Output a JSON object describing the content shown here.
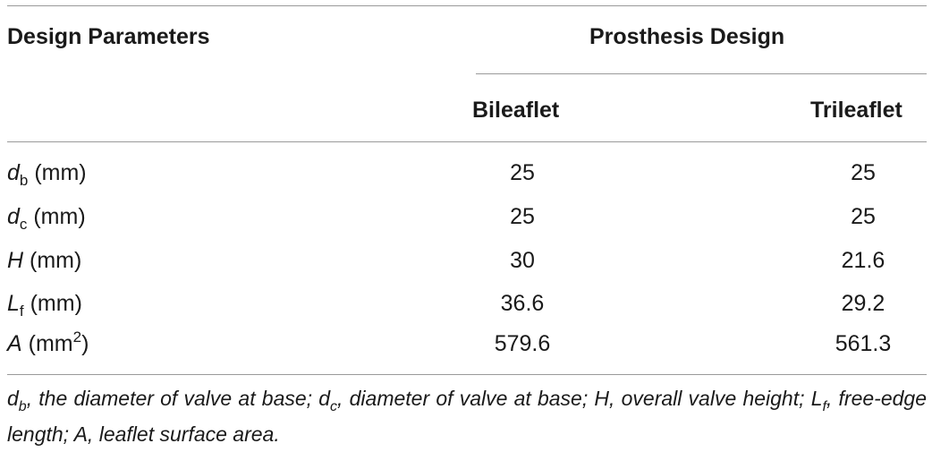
{
  "table": {
    "headers": {
      "design_parameters": "Design Parameters",
      "prosthesis_design": "Prosthesis Design",
      "bileaflet": "Bileaflet",
      "trileaflet": "Trileaflet"
    },
    "rows": [
      {
        "symbol": "d",
        "subscript": "b",
        "superscript": "",
        "unit_open": " (mm",
        "unit_close": ")",
        "bileaflet": "25",
        "trileaflet": "25"
      },
      {
        "symbol": "d",
        "subscript": "c",
        "superscript": "",
        "unit_open": " (mm",
        "unit_close": ")",
        "bileaflet": "25",
        "trileaflet": "25"
      },
      {
        "symbol": "H",
        "subscript": "",
        "superscript": "",
        "unit_open": " (mm",
        "unit_close": ")",
        "bileaflet": "30",
        "trileaflet": "21.6"
      },
      {
        "symbol": "L",
        "subscript": "f",
        "superscript": "",
        "unit_open": " (mm",
        "unit_close": ")",
        "bileaflet": "36.6",
        "trileaflet": "29.2"
      },
      {
        "symbol": "A",
        "subscript": "",
        "superscript": "2",
        "unit_open": " (mm",
        "unit_close": ")",
        "bileaflet": "579.6",
        "trileaflet": "561.3"
      }
    ]
  },
  "footnote": {
    "p1": "d",
    "s1": "b",
    "p2": ", the diameter of valve at base; d",
    "s2": "c",
    "p3": ", diameter of valve at base; H, overall valve height; L",
    "s3": "f",
    "p4": ", free-edge length; A, leaflet surface area."
  }
}
